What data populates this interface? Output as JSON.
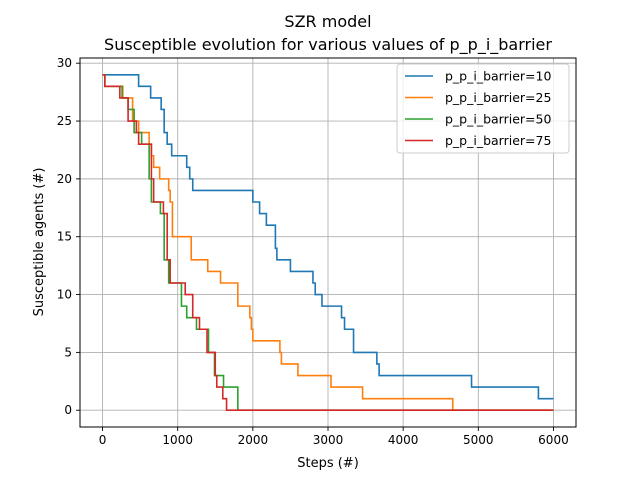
{
  "chart_data": {
    "type": "line",
    "title": "SZR model",
    "subtitle": "Susceptible evolution for various values of p_p_i_barrier",
    "xlabel": "Steps (#)",
    "ylabel": "Susceptible agents (#)",
    "xlim": [
      -300,
      6300
    ],
    "ylim": [
      -1.45,
      30.45
    ],
    "xticks": [
      0,
      1000,
      2000,
      3000,
      4000,
      5000,
      6000
    ],
    "xtick_labels": [
      "0",
      "1000",
      "2000",
      "3000",
      "4000",
      "5000",
      "6000"
    ],
    "yticks": [
      0,
      5,
      10,
      15,
      20,
      25,
      30
    ],
    "ytick_labels": [
      "0",
      "5",
      "10",
      "15",
      "20",
      "25",
      "30"
    ],
    "grid": true,
    "legend_position": "top-right",
    "series": [
      {
        "name": "p_p_i_barrier=10",
        "color": "#1f77b4",
        "x": [
          0,
          170,
          480,
          640,
          780,
          820,
          860,
          920,
          1000,
          1120,
          1160,
          1200,
          1840,
          2000,
          2090,
          2180,
          2300,
          2320,
          2500,
          2800,
          2830,
          2870,
          2920,
          3180,
          3220,
          3250,
          3340,
          3650,
          3680,
          4910,
          5800,
          6000
        ],
        "y": [
          29,
          29,
          28,
          27,
          26,
          24,
          23,
          22,
          22,
          21,
          20,
          19,
          19,
          18,
          17,
          16,
          14,
          13,
          12,
          11,
          10,
          10,
          9,
          8,
          7,
          7,
          5,
          4,
          3,
          2,
          1,
          1
        ]
      },
      {
        "name": "p_p_i_barrier=25",
        "color": "#ff7f0e",
        "x": [
          0,
          30,
          270,
          400,
          480,
          620,
          650,
          680,
          760,
          880,
          900,
          930,
          1180,
          1400,
          1570,
          1800,
          1960,
          1980,
          2000,
          2360,
          2380,
          2420,
          2600,
          3040,
          3460,
          4660,
          6000
        ],
        "y": [
          29,
          28,
          27,
          25,
          24,
          23,
          22,
          21,
          20,
          19,
          18,
          15,
          13,
          12,
          11,
          9,
          8,
          7,
          6,
          5,
          4,
          4,
          3,
          2,
          1,
          0,
          0
        ]
      },
      {
        "name": "p_p_i_barrier=50",
        "color": "#2ca02c",
        "x": [
          0,
          30,
          260,
          340,
          420,
          520,
          620,
          650,
          770,
          820,
          880,
          920,
          1050,
          1120,
          1250,
          1410,
          1490,
          1610,
          1800,
          6000
        ],
        "y": [
          29,
          28,
          27,
          26,
          24,
          23,
          20,
          18,
          17,
          13,
          11,
          11,
          9,
          8,
          7,
          5,
          3,
          2,
          0,
          0
        ]
      },
      {
        "name": "p_p_i_barrier=75",
        "color": "#d62728",
        "x": [
          0,
          30,
          230,
          340,
          450,
          480,
          650,
          680,
          810,
          860,
          900,
          1000,
          1100,
          1200,
          1290,
          1390,
          1440,
          1500,
          1520,
          1600,
          1650,
          6000
        ],
        "y": [
          29,
          28,
          27,
          25,
          24,
          23,
          20,
          18,
          17,
          13,
          11,
          11,
          10,
          8,
          7,
          5,
          5,
          3,
          2,
          1,
          0,
          0
        ]
      }
    ]
  }
}
